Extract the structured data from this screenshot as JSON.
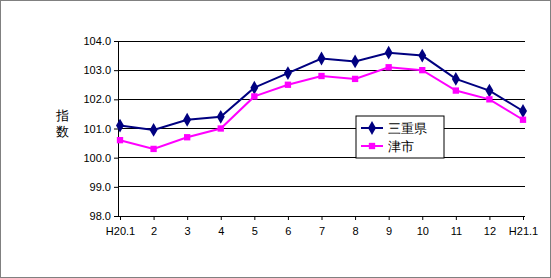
{
  "chart_data": {
    "type": "line",
    "y_label": "指数",
    "categories": [
      "H20.1",
      "2",
      "3",
      "4",
      "5",
      "6",
      "7",
      "8",
      "9",
      "10",
      "11",
      "12",
      "H21.1"
    ],
    "series": [
      {
        "name": "三重県",
        "color": "#000080",
        "marker": "diamond",
        "line_style": "solid",
        "values": [
          101.1,
          100.95,
          101.3,
          101.4,
          102.4,
          102.9,
          103.4,
          103.3,
          103.6,
          103.5,
          102.7,
          102.3,
          101.6
        ]
      },
      {
        "name": "津市",
        "color": "#ff00ff",
        "marker": "square",
        "line_style": "solid",
        "values": [
          100.6,
          100.3,
          100.7,
          101.0,
          102.1,
          102.5,
          102.8,
          102.7,
          103.1,
          103.0,
          102.3,
          102.0,
          101.3
        ]
      }
    ],
    "ylim": [
      98,
      104
    ],
    "yticks": [
      {
        "value": 98,
        "label": "98.0"
      },
      {
        "value": 99,
        "label": "99.0"
      },
      {
        "value": 100,
        "label": "100.0"
      },
      {
        "value": 101,
        "label": "101.0"
      },
      {
        "value": 102,
        "label": "102.0"
      },
      {
        "value": 103,
        "label": "103.0"
      },
      {
        "value": 104,
        "label": "104.0"
      }
    ],
    "grid": true,
    "legend": "right"
  }
}
